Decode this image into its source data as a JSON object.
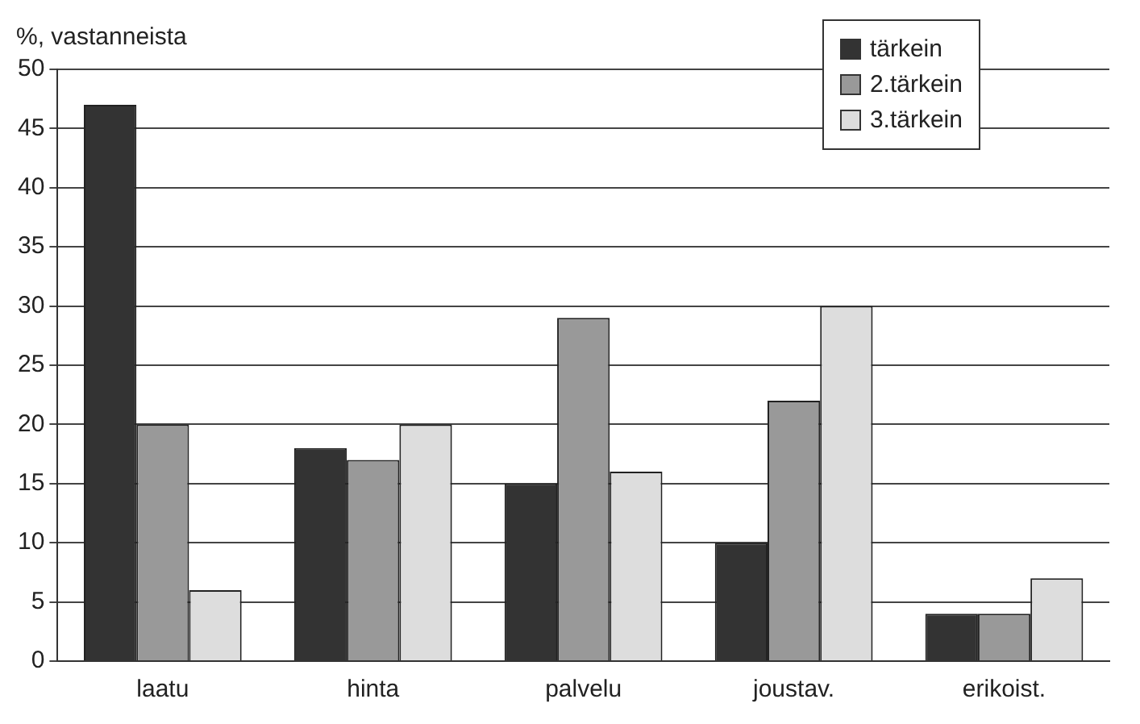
{
  "chart_data": {
    "type": "bar",
    "ylabel": "%, vastanneista",
    "categories": [
      "laatu",
      "hinta",
      "palvelu",
      "joustav.",
      "erikoist."
    ],
    "series": [
      {
        "name": "tärkein",
        "color": "#333333",
        "values": [
          47,
          18,
          15,
          10,
          4
        ]
      },
      {
        "name": "2.tärkein",
        "color": "#999999",
        "values": [
          20,
          17,
          29,
          22,
          4
        ]
      },
      {
        "name": "3.tärkein",
        "color": "#dddddd",
        "values": [
          6,
          20,
          16,
          30,
          7
        ]
      }
    ],
    "ylim": [
      0,
      50
    ],
    "yticks": [
      0,
      5,
      10,
      15,
      20,
      25,
      30,
      35,
      40,
      45,
      50
    ],
    "grid": "y",
    "legend": "top right"
  }
}
